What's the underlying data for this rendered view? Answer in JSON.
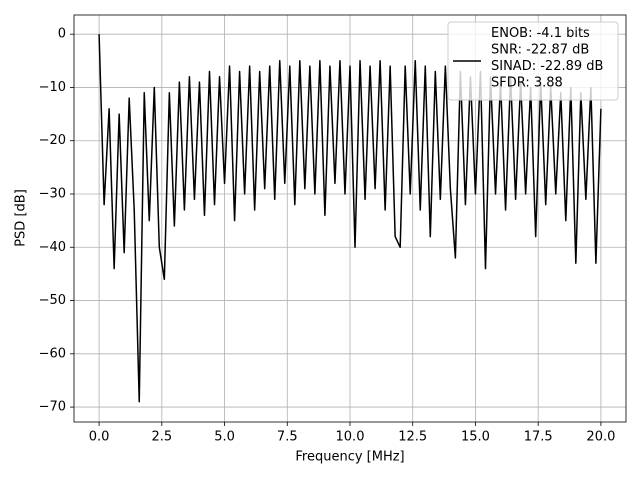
{
  "chart_data": {
    "type": "line",
    "xlabel": "Frequency [MHz]",
    "ylabel": "PSD [dB]",
    "xlim": [
      -1.0,
      21.0
    ],
    "ylim": [
      -72.8,
      3.6
    ],
    "xticks": [
      {
        "value": 0,
        "label": "0.0"
      },
      2.5,
      {
        "value": 5,
        "label": "5.0"
      },
      7.5,
      {
        "value": 10,
        "label": "10.0"
      },
      12.5,
      {
        "value": 15,
        "label": "15.0"
      },
      17.5,
      {
        "value": 20,
        "label": "20.0"
      }
    ],
    "yticks": [
      0,
      {
        "value": -10,
        "label": "−10"
      },
      {
        "value": -20,
        "label": "−20"
      },
      {
        "value": -30,
        "label": "−30"
      },
      {
        "value": -40,
        "label": "−40"
      },
      {
        "value": -50,
        "label": "−50"
      },
      {
        "value": -60,
        "label": "−60"
      },
      {
        "value": -70,
        "label": "−70"
      }
    ],
    "grid": true,
    "legend": "upper right",
    "x": [
      0,
      0.2,
      0.4,
      0.6,
      0.8,
      1.0,
      1.2,
      1.4,
      1.6,
      1.8,
      2.0,
      2.2,
      2.4,
      2.6,
      2.8,
      3.0,
      3.2,
      3.4,
      3.6,
      3.8,
      4.0,
      4.2,
      4.4,
      4.6,
      4.8,
      5.0,
      5.2,
      5.4,
      5.6,
      5.8,
      6.0,
      6.2,
      6.4,
      6.6,
      6.8,
      7.0,
      7.2,
      7.4,
      7.6,
      7.8,
      8.0,
      8.2,
      8.4,
      8.6,
      8.8,
      9.0,
      9.2,
      9.4,
      9.6,
      9.8,
      10.0,
      10.2,
      10.4,
      10.6,
      10.8,
      11.0,
      11.2,
      11.4,
      11.6,
      11.8,
      12.0,
      12.2,
      12.4,
      12.6,
      12.8,
      13.0,
      13.2,
      13.4,
      13.6,
      13.8,
      14.0,
      14.2,
      14.4,
      14.6,
      14.8,
      15.0,
      15.2,
      15.4,
      15.6,
      15.8,
      16.0,
      16.2,
      16.4,
      16.6,
      16.8,
      17.0,
      17.2,
      17.4,
      17.6,
      17.8,
      18.0,
      18.2,
      18.4,
      18.6,
      18.8,
      19.0,
      19.2,
      19.4,
      19.6,
      19.8,
      20.0
    ],
    "series": [
      {
        "name": "ENOB: -4.1 bits\nSNR: -22.87 dB\nSINAD: -22.89 dB\nSFDR: 3.88",
        "color": "#000000",
        "values": [
          0,
          -32,
          -14,
          -44,
          -15,
          -41,
          -12,
          -33,
          -69,
          -11,
          -35,
          -10,
          -40,
          -46,
          -11,
          -36,
          -9,
          -33,
          -8,
          -31,
          -9,
          -34,
          -7,
          -32,
          -8,
          -28,
          -6,
          -35,
          -7,
          -30,
          -6,
          -33,
          -7,
          -29,
          -6,
          -31,
          -5,
          -28,
          -6,
          -32,
          -5,
          -29,
          -6,
          -30,
          -5,
          -34,
          -6,
          -28,
          -5,
          -30,
          -6,
          -40,
          -5,
          -31,
          -6,
          -29,
          -5,
          -33,
          -6,
          -38,
          -40,
          -6,
          -30,
          -5,
          -33,
          -6,
          -38,
          -7,
          -31,
          -6,
          -29,
          -42,
          -7,
          -32,
          -8,
          -30,
          -7,
          -44,
          -8,
          -30,
          -9,
          -33,
          -8,
          -31,
          -9,
          -30,
          -10,
          -38,
          -9,
          -32,
          -10,
          -30,
          -11,
          -35,
          -10,
          -43,
          -11,
          -31,
          -10,
          -43,
          -14
        ]
      }
    ]
  }
}
